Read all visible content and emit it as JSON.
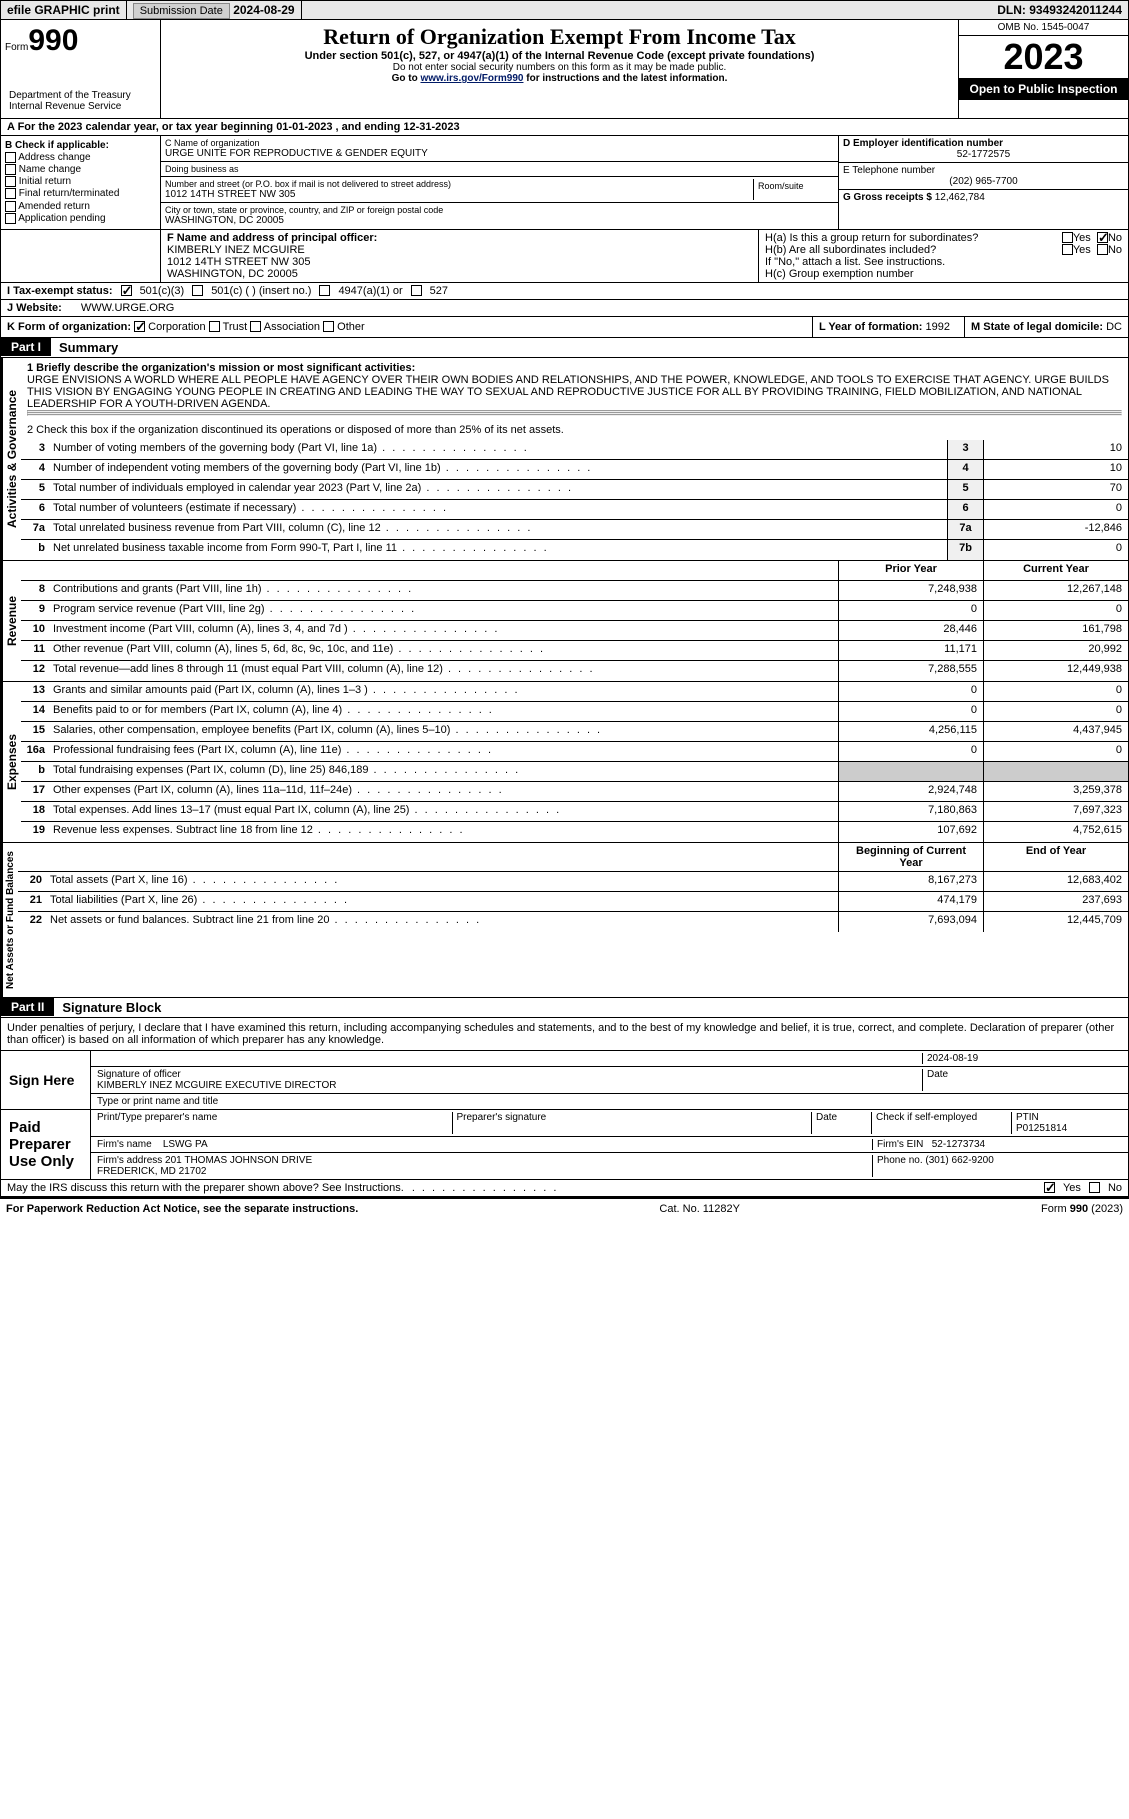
{
  "topbar": {
    "efile": "efile GRAPHIC print",
    "submission_label": "Submission Date",
    "submission_date": "2024-08-29",
    "dln_label": "DLN:",
    "dln": "93493242011244"
  },
  "header": {
    "form_label": "Form",
    "form_no": "990",
    "dept": "Department of the Treasury\nInternal Revenue Service",
    "title": "Return of Organization Exempt From Income Tax",
    "subtitle": "Under section 501(c), 527, or 4947(a)(1) of the Internal Revenue Code (except private foundations)",
    "note1": "Do not enter social security numbers on this form as it may be made public.",
    "note2_prefix": "Go to ",
    "note2_link": "www.irs.gov/Form990",
    "note2_suffix": " for instructions and the latest information.",
    "omb": "OMB No. 1545-0047",
    "year": "2023",
    "inspection": "Open to Public Inspection"
  },
  "section_a": {
    "text": "A For the 2023 calendar year, or tax year beginning 01-01-2023   , and ending 12-31-2023"
  },
  "col_b": {
    "heading": "B Check if applicable:",
    "items": [
      "Address change",
      "Name change",
      "Initial return",
      "Final return/terminated",
      "Amended return",
      "Application pending"
    ]
  },
  "col_c": {
    "name_lbl": "C Name of organization",
    "name": "URGE UNITE FOR REPRODUCTIVE & GENDER EQUITY",
    "dba_lbl": "Doing business as",
    "dba": "",
    "addr_lbl": "Number and street (or P.O. box if mail is not delivered to street address)",
    "addr": "1012 14TH STREET NW 305",
    "room_lbl": "Room/suite",
    "city_lbl": "City or town, state or province, country, and ZIP or foreign postal code",
    "city": "WASHINGTON, DC  20005"
  },
  "col_d": {
    "ein_lbl": "D Employer identification number",
    "ein": "52-1772575",
    "phone_lbl": "E Telephone number",
    "phone": "(202) 965-7700",
    "gross_lbl": "G Gross receipts $",
    "gross": "12,462,784"
  },
  "officer": {
    "lbl": "F Name and address of principal officer:",
    "name": "KIMBERLY INEZ MCGUIRE",
    "addr1": "1012 14TH STREET NW 305",
    "addr2": "WASHINGTON, DC  20005"
  },
  "h": {
    "ha": "H(a)  Is this a group return for subordinates?",
    "hb": "H(b)  Are all subordinates included?",
    "hb_note": "If \"No,\" attach a list. See instructions.",
    "hc": "H(c)  Group exemption number",
    "yes": "Yes",
    "no": "No"
  },
  "tax_status": {
    "lbl": "I   Tax-exempt status:",
    "o1": "501(c)(3)",
    "o2": "501(c) (  ) (insert no.)",
    "o3": "4947(a)(1) or",
    "o4": "527"
  },
  "website": {
    "lbl": "J   Website:",
    "val": "WWW.URGE.ORG"
  },
  "k": {
    "lbl": "K Form of organization:",
    "o1": "Corporation",
    "o2": "Trust",
    "o3": "Association",
    "o4": "Other"
  },
  "l": {
    "lbl": "L Year of formation:",
    "val": "1992"
  },
  "m": {
    "lbl": "M State of legal domicile:",
    "val": "DC"
  },
  "part1": {
    "hdr": "Part I",
    "title": "Summary",
    "mission_lbl": "1   Briefly describe the organization's mission or most significant activities:",
    "mission": "URGE ENVISIONS A WORLD WHERE ALL PEOPLE HAVE AGENCY OVER THEIR OWN BODIES AND RELATIONSHIPS, AND THE POWER, KNOWLEDGE, AND TOOLS TO EXERCISE THAT AGENCY. URGE BUILDS THIS VISION BY ENGAGING YOUNG PEOPLE IN CREATING AND LEADING THE WAY TO SEXUAL AND REPRODUCTIVE JUSTICE FOR ALL BY PROVIDING TRAINING, FIELD MOBILIZATION, AND NATIONAL LEADERSHIP FOR A YOUTH-DRIVEN AGENDA.",
    "line2": "2    Check this box      if the organization discontinued its operations or disposed of more than 25% of its net assets.",
    "tabs": {
      "gov": "Activities & Governance",
      "rev": "Revenue",
      "exp": "Expenses",
      "net": "Net Assets or Fund Balances"
    },
    "gov_lines": [
      {
        "n": "3",
        "d": "Number of voting members of the governing body (Part VI, line 1a)",
        "c": "3",
        "v": "10"
      },
      {
        "n": "4",
        "d": "Number of independent voting members of the governing body (Part VI, line 1b)",
        "c": "4",
        "v": "10"
      },
      {
        "n": "5",
        "d": "Total number of individuals employed in calendar year 2023 (Part V, line 2a)",
        "c": "5",
        "v": "70"
      },
      {
        "n": "6",
        "d": "Total number of volunteers (estimate if necessary)",
        "c": "6",
        "v": "0"
      },
      {
        "n": "7a",
        "d": "Total unrelated business revenue from Part VIII, column (C), line 12",
        "c": "7a",
        "v": "-12,846"
      },
      {
        "n": "b",
        "d": "Net unrelated business taxable income from Form 990-T, Part I, line 11",
        "c": "7b",
        "v": "0"
      }
    ],
    "col_hdr": {
      "prior": "Prior Year",
      "current": "Current Year"
    },
    "rev_lines": [
      {
        "n": "8",
        "d": "Contributions and grants (Part VIII, line 1h)",
        "p": "7,248,938",
        "c": "12,267,148"
      },
      {
        "n": "9",
        "d": "Program service revenue (Part VIII, line 2g)",
        "p": "0",
        "c": "0"
      },
      {
        "n": "10",
        "d": "Investment income (Part VIII, column (A), lines 3, 4, and 7d )",
        "p": "28,446",
        "c": "161,798"
      },
      {
        "n": "11",
        "d": "Other revenue (Part VIII, column (A), lines 5, 6d, 8c, 9c, 10c, and 11e)",
        "p": "11,171",
        "c": "20,992"
      },
      {
        "n": "12",
        "d": "Total revenue—add lines 8 through 11 (must equal Part VIII, column (A), line 12)",
        "p": "7,288,555",
        "c": "12,449,938"
      }
    ],
    "exp_lines": [
      {
        "n": "13",
        "d": "Grants and similar amounts paid (Part IX, column (A), lines 1–3 )",
        "p": "0",
        "c": "0"
      },
      {
        "n": "14",
        "d": "Benefits paid to or for members (Part IX, column (A), line 4)",
        "p": "0",
        "c": "0"
      },
      {
        "n": "15",
        "d": "Salaries, other compensation, employee benefits (Part IX, column (A), lines 5–10)",
        "p": "4,256,115",
        "c": "4,437,945"
      },
      {
        "n": "16a",
        "d": "Professional fundraising fees (Part IX, column (A), line 11e)",
        "p": "0",
        "c": "0"
      },
      {
        "n": "b",
        "d": "Total fundraising expenses (Part IX, column (D), line 25) 846,189",
        "p": "",
        "c": "",
        "grey": true
      },
      {
        "n": "17",
        "d": "Other expenses (Part IX, column (A), lines 11a–11d, 11f–24e)",
        "p": "2,924,748",
        "c": "3,259,378"
      },
      {
        "n": "18",
        "d": "Total expenses. Add lines 13–17 (must equal Part IX, column (A), line 25)",
        "p": "7,180,863",
        "c": "7,697,323"
      },
      {
        "n": "19",
        "d": "Revenue less expenses. Subtract line 18 from line 12",
        "p": "107,692",
        "c": "4,752,615"
      }
    ],
    "net_hdr": {
      "b": "Beginning of Current Year",
      "e": "End of Year"
    },
    "net_lines": [
      {
        "n": "20",
        "d": "Total assets (Part X, line 16)",
        "p": "8,167,273",
        "c": "12,683,402"
      },
      {
        "n": "21",
        "d": "Total liabilities (Part X, line 26)",
        "p": "474,179",
        "c": "237,693"
      },
      {
        "n": "22",
        "d": "Net assets or fund balances. Subtract line 21 from line 20",
        "p": "7,693,094",
        "c": "12,445,709"
      }
    ]
  },
  "part2": {
    "hdr": "Part II",
    "title": "Signature Block",
    "perjury": "Under penalties of perjury, I declare that I have examined this return, including accompanying schedules and statements, and to the best of my knowledge and belief, it is true, correct, and complete. Declaration of preparer (other than officer) is based on all information of which preparer has any knowledge.",
    "sign_here": "Sign Here",
    "sig_date": "2024-08-19",
    "sig_officer_lbl": "Signature of officer",
    "sig_officer": "KIMBERLY INEZ MCGUIRE  EXECUTIVE DIRECTOR",
    "sig_type_lbl": "Type or print name and title",
    "date_lbl": "Date",
    "paid": "Paid Preparer Use Only",
    "prep_name_lbl": "Print/Type preparer's name",
    "prep_sig_lbl": "Preparer's signature",
    "check_lbl": "Check       if self-employed",
    "ptin_lbl": "PTIN",
    "ptin": "P01251814",
    "firm_name_lbl": "Firm's name",
    "firm_name": "LSWG PA",
    "firm_ein_lbl": "Firm's EIN",
    "firm_ein": "52-1273734",
    "firm_addr_lbl": "Firm's address",
    "firm_addr": "201 THOMAS JOHNSON DRIVE\nFREDERICK, MD  21702",
    "phone_lbl": "Phone no.",
    "phone": "(301) 662-9200",
    "discuss": "May the IRS discuss this return with the preparer shown above? See Instructions."
  },
  "footer": {
    "pra": "For Paperwork Reduction Act Notice, see the separate instructions.",
    "cat": "Cat. No. 11282Y",
    "form": "Form 990 (2023)"
  }
}
